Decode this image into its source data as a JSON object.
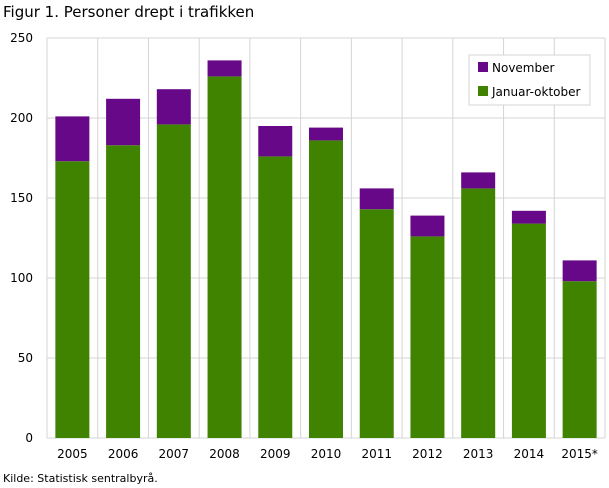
{
  "chart_data": {
    "type": "bar",
    "stacked": true,
    "title": "Figur 1. Personer drept i trafikken",
    "source": "Kilde: Statistisk sentralbyrå.",
    "categories": [
      "2005",
      "2006",
      "2007",
      "2008",
      "2009",
      "2010",
      "2011",
      "2012",
      "2013",
      "2014",
      "2015*"
    ],
    "series": [
      {
        "name": "Januar-oktober",
        "color": "#3f8300",
        "values": [
          173,
          183,
          196,
          226,
          176,
          186,
          143,
          126,
          156,
          134,
          98
        ]
      },
      {
        "name": "November",
        "color": "#660888",
        "values": [
          28,
          29,
          22,
          10,
          19,
          8,
          13,
          13,
          10,
          8,
          13
        ]
      }
    ],
    "ylim": [
      0,
      250
    ],
    "yticks": [
      0,
      50,
      100,
      150,
      200,
      250
    ],
    "grid": true,
    "legend": "top-right",
    "legend_order": [
      "November",
      "Januar-oktober"
    ]
  }
}
